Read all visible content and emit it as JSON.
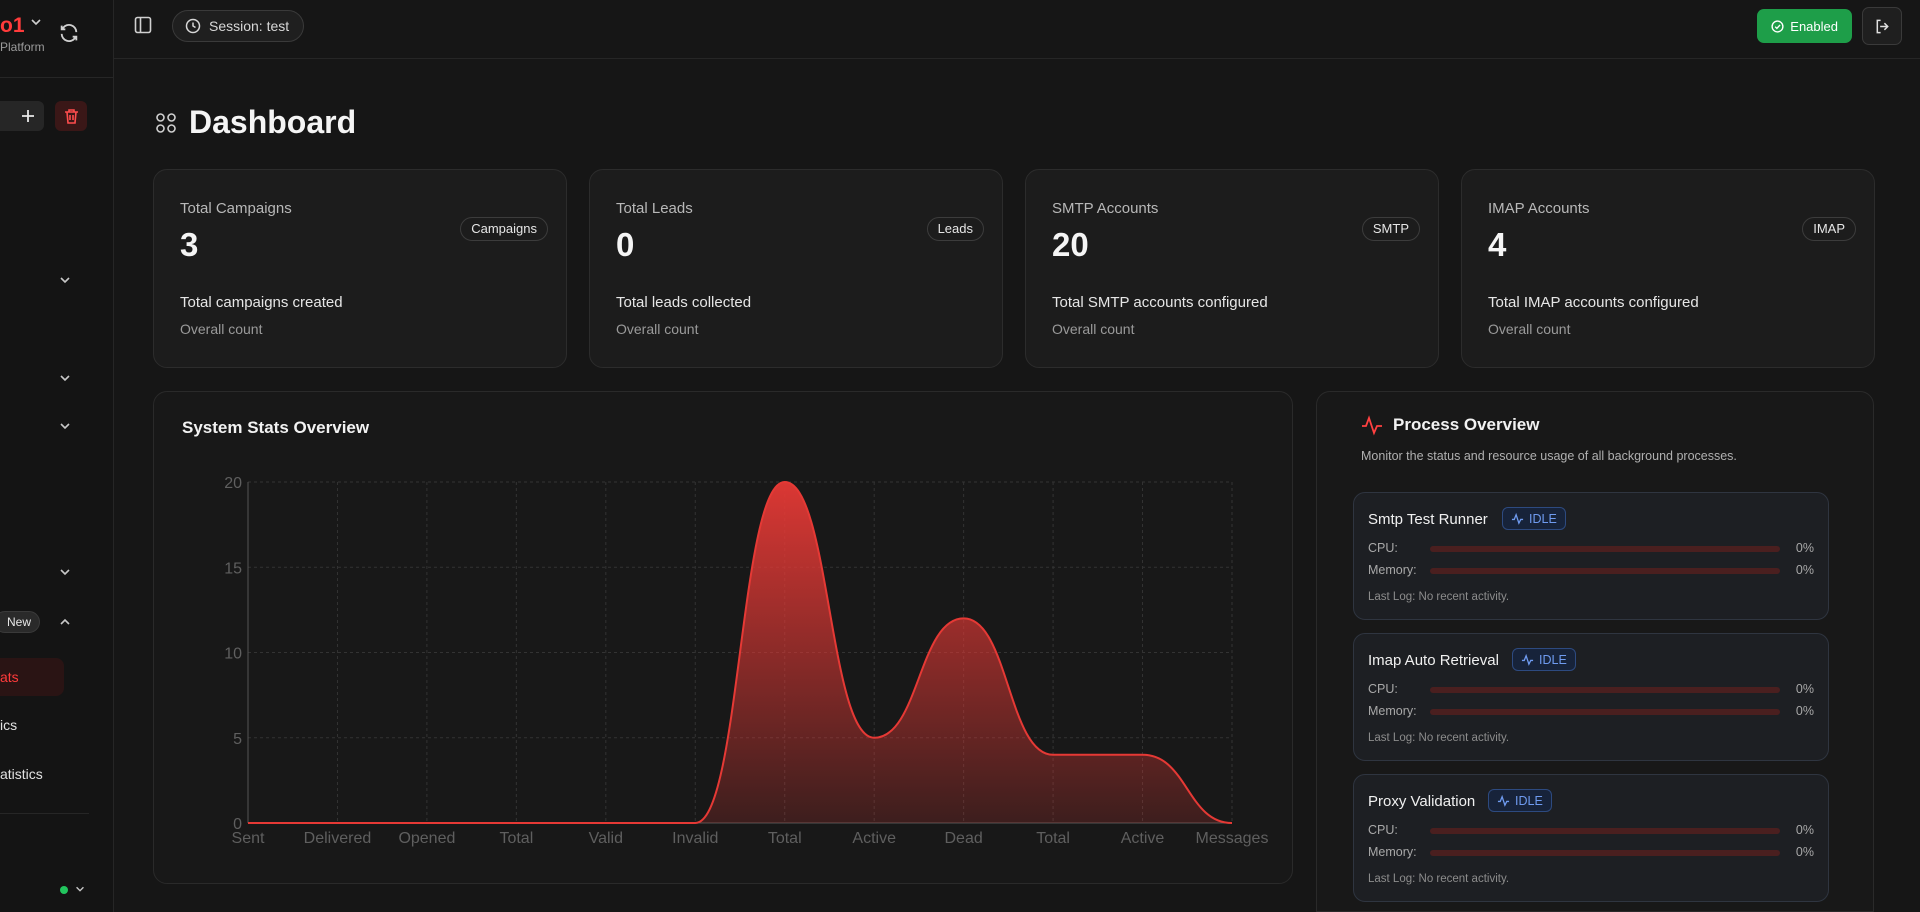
{
  "sidebar": {
    "brand_name": "o1",
    "brand_sub": "Platform",
    "new_badge": "New",
    "items": [
      "ats",
      "ics",
      "atistics"
    ]
  },
  "header": {
    "session_label": "Session: test",
    "enabled_label": "Enabled"
  },
  "page": {
    "title": "Dashboard"
  },
  "cards": [
    {
      "label": "Total Campaigns",
      "value": "3",
      "tag": "Campaigns",
      "description": "Total campaigns created",
      "sub": "Overall count"
    },
    {
      "label": "Total Leads",
      "value": "0",
      "tag": "Leads",
      "description": "Total leads collected",
      "sub": "Overall count"
    },
    {
      "label": "SMTP Accounts",
      "value": "20",
      "tag": "SMTP",
      "description": "Total SMTP accounts configured",
      "sub": "Overall count"
    },
    {
      "label": "IMAP Accounts",
      "value": "4",
      "tag": "IMAP",
      "description": "Total IMAP accounts configured",
      "sub": "Overall count"
    }
  ],
  "chart_data": {
    "type": "area",
    "title": "System Stats Overview",
    "categories": [
      "Sent",
      "Delivered",
      "Opened",
      "Total",
      "Valid",
      "Invalid",
      "Total",
      "Active",
      "Dead",
      "Total",
      "Active",
      "Messages"
    ],
    "series": [
      {
        "values": [
          0,
          0,
          0,
          0,
          0,
          0,
          20,
          5,
          12,
          4,
          4,
          0
        ]
      }
    ],
    "ylim": [
      0,
      20
    ],
    "yticks": [
      0,
      5,
      10,
      15,
      20
    ],
    "grid": true,
    "color": "#e53935"
  },
  "process": {
    "title": "Process Overview",
    "description": "Monitor the status and resource usage of all background processes.",
    "cpu_label": "CPU:",
    "memory_label": "Memory:",
    "items": [
      {
        "name": "Smtp Test Runner",
        "status": "IDLE",
        "cpu": "0%",
        "memory": "0%",
        "cpu_fraction": 0,
        "memory_fraction": 0,
        "last_log": "Last Log: No recent activity."
      },
      {
        "name": "Imap Auto Retrieval",
        "status": "IDLE",
        "cpu": "0%",
        "memory": "0%",
        "cpu_fraction": 0,
        "memory_fraction": 0,
        "last_log": "Last Log: No recent activity."
      },
      {
        "name": "Proxy Validation",
        "status": "IDLE",
        "cpu": "0%",
        "memory": "0%",
        "cpu_fraction": 0,
        "memory_fraction": 0,
        "last_log": "Last Log: No recent activity."
      }
    ]
  },
  "colors": {
    "accent": "#ff3b3b",
    "enabled": "#1e9e49",
    "idle": "#6f9bf0",
    "online": "#22c55e"
  }
}
